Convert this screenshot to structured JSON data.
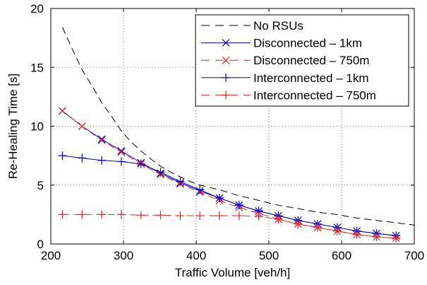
{
  "chart_data": {
    "type": "line",
    "xlabel": "Traffic Volume [veh/h]",
    "ylabel": "Re-Healing Time [s]",
    "xlim": [
      200,
      700
    ],
    "ylim": [
      0,
      20
    ],
    "xticks": [
      200,
      300,
      400,
      500,
      600,
      700
    ],
    "yticks": [
      0,
      5,
      10,
      15,
      20
    ],
    "grid": true,
    "legend_position": "top-right",
    "x": [
      216,
      243,
      270,
      297,
      324,
      351,
      378,
      405,
      432,
      459,
      486,
      513,
      540,
      567,
      594,
      621,
      648,
      675
    ],
    "series": [
      {
        "name": "No RSUs",
        "color": "#000000",
        "style": "dashed",
        "marker": "none",
        "x": [
          216,
          230,
          243,
          257,
          270,
          284,
          297,
          310,
          324,
          340,
          351,
          365,
          378,
          392,
          405,
          432,
          459,
          486,
          513,
          540,
          567,
          594,
          621,
          648,
          675,
          700
        ],
        "values": [
          18.4,
          16.5,
          14.8,
          13.4,
          12.0,
          10.8,
          9.6,
          8.7,
          7.9,
          7.1,
          6.6,
          6.1,
          5.7,
          5.3,
          5.0,
          4.6,
          4.1,
          3.7,
          3.3,
          3.0,
          2.7,
          2.5,
          2.2,
          2.0,
          1.8,
          1.6
        ]
      },
      {
        "name": "Disconnected – 1km",
        "color": "#0000cc",
        "style": "solid",
        "marker": "x",
        "values": [
          11.3,
          10.0,
          8.9,
          7.9,
          6.9,
          6.0,
          5.2,
          4.5,
          3.9,
          3.3,
          2.8,
          2.4,
          2.0,
          1.7,
          1.4,
          1.1,
          0.9,
          0.7
        ]
      },
      {
        "name": "Disconnected – 750m",
        "color": "#ee2222",
        "style": "dashed",
        "marker": "x",
        "values": [
          11.3,
          10.0,
          8.8,
          7.8,
          6.8,
          5.9,
          5.1,
          4.4,
          3.7,
          3.1,
          2.6,
          2.1,
          1.7,
          1.4,
          1.1,
          0.8,
          0.6,
          0.5
        ]
      },
      {
        "name": "Interconnected – 1km",
        "color": "#0000cc",
        "style": "solid",
        "marker": "plus",
        "values": [
          7.5,
          7.3,
          7.1,
          7.0,
          6.8,
          6.1,
          5.3,
          4.6,
          3.9,
          3.3,
          2.8,
          2.4,
          2.0,
          1.7,
          1.4,
          1.1,
          0.9,
          0.7
        ]
      },
      {
        "name": "Interconnected – 750m",
        "color": "#ee2222",
        "style": "dashed",
        "marker": "plus",
        "values": [
          2.5,
          2.5,
          2.5,
          2.5,
          2.45,
          2.45,
          2.4,
          2.4,
          2.4,
          2.4,
          2.35,
          2.1,
          1.7,
          1.4,
          1.1,
          0.8,
          0.6,
          0.5
        ]
      }
    ]
  }
}
